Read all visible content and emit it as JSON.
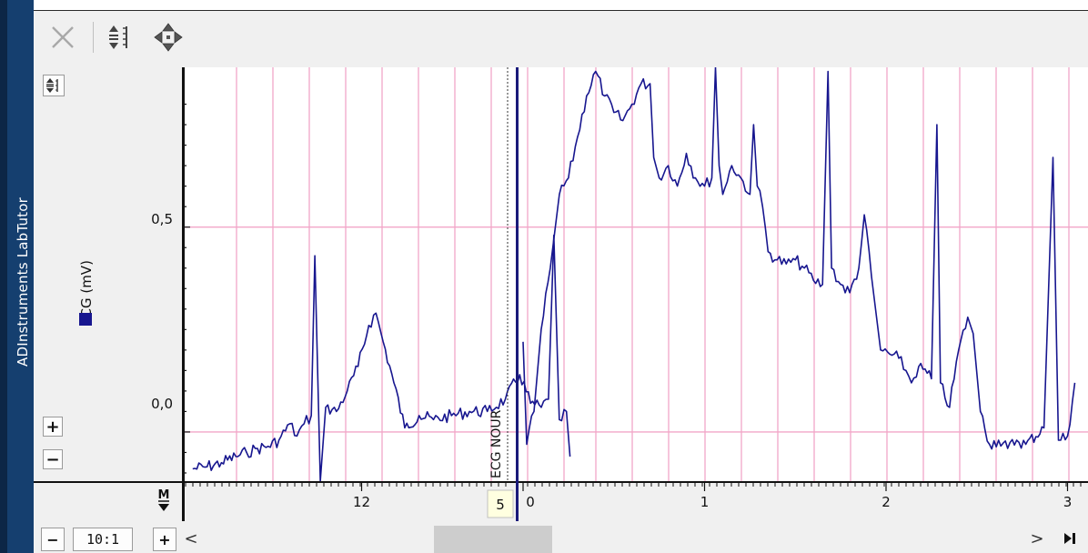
{
  "app": {
    "title": "ADInstruments LabTutor"
  },
  "toolbar": {
    "buttons": [
      {
        "name": "delete",
        "icon": "close-x-icon",
        "enabled": false
      },
      {
        "name": "autoscale",
        "icon": "autoscale-icon",
        "enabled": true
      },
      {
        "name": "pan",
        "icon": "move-arrows-icon",
        "enabled": true
      }
    ]
  },
  "channel": {
    "label": "ECG (mV)",
    "color": "#17168f"
  },
  "axis": {
    "y_labels": [
      "0,5",
      "0,0"
    ],
    "x_labels_before": [
      "12"
    ],
    "x_labels_after": [
      "0",
      "1",
      "2",
      "3"
    ],
    "break_value": "5"
  },
  "comment": {
    "text": "ECG NOUR"
  },
  "zoom": {
    "ratio": "10:1",
    "minus": "−",
    "plus": "+"
  },
  "scroll": {
    "left_arrow": "<",
    "right_arrow": ">"
  },
  "buttons": {
    "plus": "+",
    "minus": "−"
  },
  "colors": {
    "grid": "#f2a6c8",
    "trace": "#17168f",
    "brand": "#153f6f",
    "panel": "#f0f0f0"
  },
  "chart_data": {
    "type": "line",
    "title": "",
    "ylabel": "ECG (mV)",
    "ylim": [
      -0.12,
      0.89
    ],
    "ytick_labels": [
      "0,0",
      "0,5"
    ],
    "segments": [
      {
        "name": "",
        "xtick_labels": [
          "12"
        ],
        "points": [
          [
            11.53,
            -0.09
          ],
          [
            11.57,
            -0.085
          ],
          [
            11.61,
            -0.075
          ],
          [
            11.65,
            -0.06
          ],
          [
            11.68,
            -0.05
          ],
          [
            11.71,
            -0.04
          ],
          [
            11.74,
            -0.035
          ],
          [
            11.77,
            -0.02
          ],
          [
            11.8,
            0.02
          ],
          [
            11.82,
            -0.01
          ],
          [
            11.84,
            0.02
          ],
          [
            11.86,
            0.04
          ],
          [
            11.87,
            0.43
          ],
          [
            11.885,
            -0.12
          ],
          [
            11.9,
            0.06
          ],
          [
            11.93,
            0.05
          ],
          [
            11.96,
            0.1
          ],
          [
            11.99,
            0.16
          ],
          [
            12.02,
            0.26
          ],
          [
            12.04,
            0.29
          ],
          [
            12.06,
            0.22
          ],
          [
            12.09,
            0.12
          ],
          [
            12.12,
            0.01
          ],
          [
            12.16,
            0.04
          ],
          [
            12.2,
            0.03
          ],
          [
            12.25,
            0.04
          ],
          [
            12.3,
            0.05
          ],
          [
            12.35,
            0.05
          ],
          [
            12.4,
            0.08
          ],
          [
            12.44,
            0.14
          ],
          [
            12.47,
            0.07
          ],
          [
            12.5,
            0.06
          ],
          [
            12.52,
            0.08
          ],
          [
            12.535,
            0.48
          ],
          [
            12.55,
            0.03
          ],
          [
            12.57,
            0.05
          ],
          [
            12.58,
            -0.06
          ]
        ]
      },
      {
        "name": "",
        "xtick_labels": [
          "0",
          "1",
          "2",
          "3"
        ],
        "points": [
          [
            0.0,
            0.22
          ],
          [
            0.02,
            -0.03
          ],
          [
            0.06,
            0.05
          ],
          [
            0.1,
            0.25
          ],
          [
            0.15,
            0.4
          ],
          [
            0.2,
            0.58
          ],
          [
            0.25,
            0.62
          ],
          [
            0.3,
            0.72
          ],
          [
            0.35,
            0.82
          ],
          [
            0.4,
            0.88
          ],
          [
            0.45,
            0.82
          ],
          [
            0.5,
            0.78
          ],
          [
            0.55,
            0.76
          ],
          [
            0.6,
            0.8
          ],
          [
            0.65,
            0.85
          ],
          [
            0.7,
            0.85
          ],
          [
            0.72,
            0.67
          ],
          [
            0.75,
            0.62
          ],
          [
            0.8,
            0.65
          ],
          [
            0.85,
            0.6
          ],
          [
            0.9,
            0.68
          ],
          [
            0.95,
            0.62
          ],
          [
            1.0,
            0.6
          ],
          [
            1.04,
            0.62
          ],
          [
            1.06,
            0.89
          ],
          [
            1.08,
            0.65
          ],
          [
            1.1,
            0.58
          ],
          [
            1.15,
            0.65
          ],
          [
            1.2,
            0.62
          ],
          [
            1.25,
            0.58
          ],
          [
            1.27,
            0.75
          ],
          [
            1.29,
            0.6
          ],
          [
            1.32,
            0.55
          ],
          [
            1.35,
            0.44
          ],
          [
            1.4,
            0.42
          ],
          [
            1.45,
            0.41
          ],
          [
            1.5,
            0.42
          ],
          [
            1.55,
            0.4
          ],
          [
            1.6,
            0.37
          ],
          [
            1.65,
            0.36
          ],
          [
            1.68,
            0.88
          ],
          [
            1.7,
            0.4
          ],
          [
            1.75,
            0.36
          ],
          [
            1.8,
            0.34
          ],
          [
            1.85,
            0.4
          ],
          [
            1.88,
            0.53
          ],
          [
            1.92,
            0.38
          ],
          [
            1.97,
            0.2
          ],
          [
            2.02,
            0.19
          ],
          [
            2.07,
            0.18
          ],
          [
            2.11,
            0.15
          ],
          [
            2.14,
            0.12
          ],
          [
            2.18,
            0.16
          ],
          [
            2.25,
            0.13
          ],
          [
            2.28,
            0.75
          ],
          [
            2.3,
            0.12
          ],
          [
            2.35,
            0.06
          ],
          [
            2.4,
            0.2
          ],
          [
            2.45,
            0.28
          ],
          [
            2.48,
            0.24
          ],
          [
            2.52,
            0.05
          ],
          [
            2.57,
            -0.03
          ],
          [
            2.62,
            -0.02
          ],
          [
            2.67,
            -0.04
          ],
          [
            2.72,
            -0.02
          ],
          [
            2.77,
            -0.03
          ],
          [
            2.87,
            0.01
          ],
          [
            2.92,
            0.67
          ],
          [
            2.95,
            -0.02
          ],
          [
            3.0,
            -0.01
          ],
          [
            3.04,
            0.12
          ]
        ]
      }
    ],
    "comment": "ECG NOUR",
    "grid": true
  }
}
